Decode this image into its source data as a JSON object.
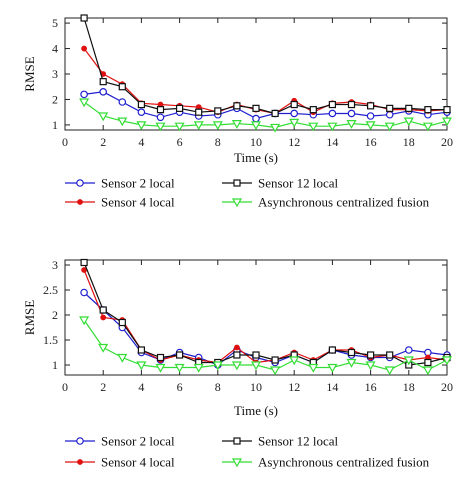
{
  "chart_data": [
    {
      "type": "line",
      "xlabel": "Time (s)",
      "ylabel": "RMSE",
      "xlim": [
        0,
        20
      ],
      "ylim": [
        0.8,
        5.2
      ],
      "xticks": [
        0,
        2,
        4,
        6,
        8,
        10,
        12,
        14,
        16,
        18,
        20
      ],
      "yticks": [
        1,
        2,
        3,
        4,
        5
      ],
      "grid": false,
      "legend_position": "bottom",
      "x": [
        1,
        2,
        3,
        4,
        5,
        6,
        7,
        8,
        9,
        10,
        11,
        12,
        13,
        14,
        15,
        16,
        17,
        18,
        19,
        20
      ],
      "series": [
        {
          "name": "Sensor 2 local",
          "color": "#1f1fd0",
          "marker": "circle",
          "values": [
            2.2,
            2.3,
            1.9,
            1.5,
            1.3,
            1.5,
            1.35,
            1.4,
            1.65,
            1.25,
            1.45,
            1.45,
            1.4,
            1.45,
            1.45,
            1.35,
            1.4,
            1.55,
            1.4,
            1.5
          ]
        },
        {
          "name": "Sensor 4 local",
          "color": "#e01010",
          "marker": "dot",
          "values": [
            4.0,
            3.0,
            2.6,
            1.85,
            1.8,
            1.75,
            1.7,
            1.5,
            1.8,
            1.6,
            1.45,
            1.95,
            1.5,
            1.85,
            1.9,
            1.8,
            1.6,
            1.6,
            1.55,
            1.6
          ]
        },
        {
          "name": "Sensor 12 local",
          "color": "#111111",
          "marker": "square",
          "values": [
            5.2,
            2.7,
            2.5,
            1.8,
            1.6,
            1.65,
            1.5,
            1.55,
            1.75,
            1.65,
            1.45,
            1.8,
            1.6,
            1.8,
            1.8,
            1.75,
            1.65,
            1.65,
            1.6,
            1.6
          ]
        },
        {
          "name": "Asynchronous centralized fusion",
          "color": "#33dd33",
          "marker": "triangle-down",
          "values": [
            1.9,
            1.35,
            1.15,
            1.0,
            0.95,
            0.95,
            1.0,
            1.0,
            1.05,
            1.0,
            0.9,
            1.1,
            0.95,
            0.95,
            1.05,
            1.0,
            0.95,
            1.15,
            0.95,
            1.15
          ]
        }
      ]
    },
    {
      "type": "line",
      "xlabel": "Time (s)",
      "ylabel": "RMSE",
      "xlim": [
        0,
        20
      ],
      "ylim": [
        0.8,
        3.1
      ],
      "xticks": [
        0,
        2,
        4,
        6,
        8,
        10,
        12,
        14,
        16,
        18,
        20
      ],
      "yticks": [
        1,
        1.5,
        2,
        2.5,
        3
      ],
      "grid": false,
      "legend_position": "bottom",
      "x": [
        1,
        2,
        3,
        4,
        5,
        6,
        7,
        8,
        9,
        10,
        11,
        12,
        13,
        14,
        15,
        16,
        17,
        18,
        19,
        20
      ],
      "series": [
        {
          "name": "Sensor 2 local",
          "color": "#1f1fd0",
          "marker": "circle",
          "values": [
            2.45,
            2.1,
            1.75,
            1.25,
            1.1,
            1.25,
            1.15,
            1.0,
            1.3,
            1.15,
            1.05,
            1.2,
            1.05,
            1.3,
            1.2,
            1.15,
            1.15,
            1.3,
            1.25,
            1.2
          ]
        },
        {
          "name": "Sensor 4 local",
          "color": "#e01010",
          "marker": "dot",
          "values": [
            2.9,
            1.95,
            1.9,
            1.3,
            1.1,
            1.2,
            1.1,
            1.05,
            1.35,
            1.05,
            1.1,
            1.25,
            1.1,
            1.3,
            1.3,
            1.15,
            1.2,
            1.1,
            1.15,
            1.1
          ]
        },
        {
          "name": "Sensor 12 local",
          "color": "#111111",
          "marker": "square",
          "values": [
            3.05,
            2.1,
            1.85,
            1.3,
            1.15,
            1.2,
            1.05,
            1.05,
            1.2,
            1.2,
            1.1,
            1.2,
            1.05,
            1.3,
            1.25,
            1.2,
            1.2,
            1.0,
            1.05,
            1.15
          ]
        },
        {
          "name": "Asynchronous centralized fusion",
          "color": "#33dd33",
          "marker": "triangle-down",
          "values": [
            1.9,
            1.35,
            1.15,
            1.0,
            0.95,
            0.95,
            0.95,
            1.0,
            1.0,
            1.0,
            0.9,
            1.1,
            0.95,
            0.95,
            1.05,
            1.0,
            0.9,
            1.1,
            0.9,
            1.1
          ]
        }
      ]
    }
  ]
}
